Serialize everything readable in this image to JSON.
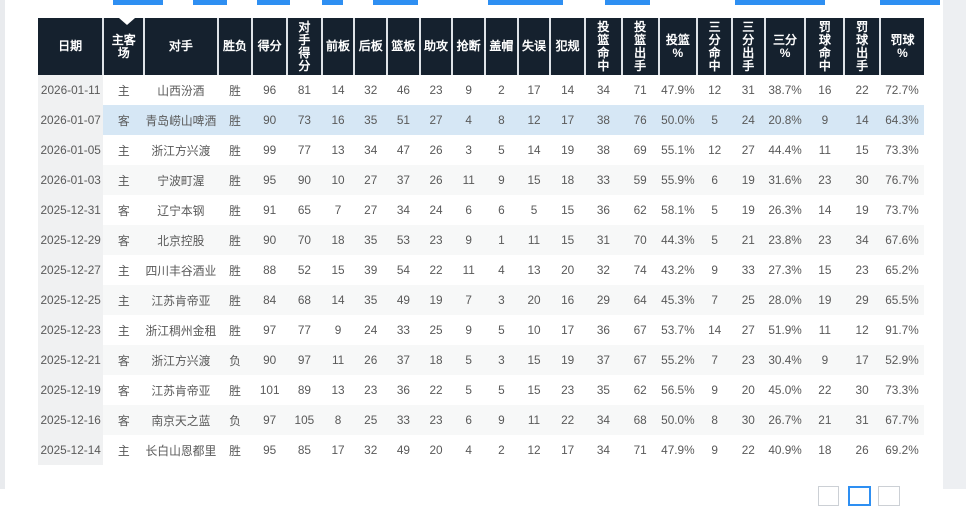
{
  "table": {
    "columns": [
      "日期",
      "主客\n场",
      "对手",
      "胜负",
      "得分",
      "对\n手\n得\n分",
      "前板",
      "后板",
      "篮板",
      "助攻",
      "抢断",
      "盖帽",
      "失误",
      "犯规",
      "投\n篮\n命\n中",
      "投\n篮\n出\n手",
      "投篮\n%",
      "三\n分\n命\n中",
      "三\n分\n出\n手",
      "三分\n%",
      "罚\n球\n命\n中",
      "罚\n球\n出\n手",
      "罚球\n%"
    ],
    "rows": [
      [
        "2026-01-11",
        "主",
        "山西汾酒",
        "胜",
        "96",
        "81",
        "14",
        "32",
        "46",
        "23",
        "9",
        "2",
        "17",
        "14",
        "34",
        "71",
        "47.9%",
        "12",
        "31",
        "38.7%",
        "16",
        "22",
        "72.7%"
      ],
      [
        "2026-01-07",
        "客",
        "青岛崂山啤酒",
        "胜",
        "90",
        "73",
        "16",
        "35",
        "51",
        "27",
        "4",
        "8",
        "12",
        "17",
        "38",
        "76",
        "50.0%",
        "5",
        "24",
        "20.8%",
        "9",
        "14",
        "64.3%"
      ],
      [
        "2026-01-05",
        "主",
        "浙江方兴渡",
        "胜",
        "99",
        "77",
        "13",
        "34",
        "47",
        "26",
        "3",
        "5",
        "14",
        "19",
        "38",
        "69",
        "55.1%",
        "12",
        "27",
        "44.4%",
        "11",
        "15",
        "73.3%"
      ],
      [
        "2026-01-03",
        "主",
        "宁波町渥",
        "胜",
        "95",
        "90",
        "10",
        "27",
        "37",
        "26",
        "11",
        "9",
        "15",
        "18",
        "33",
        "59",
        "55.9%",
        "6",
        "19",
        "31.6%",
        "23",
        "30",
        "76.7%"
      ],
      [
        "2025-12-31",
        "客",
        "辽宁本钢",
        "胜",
        "91",
        "65",
        "7",
        "27",
        "34",
        "24",
        "6",
        "6",
        "5",
        "15",
        "36",
        "62",
        "58.1%",
        "5",
        "19",
        "26.3%",
        "14",
        "19",
        "73.7%"
      ],
      [
        "2025-12-29",
        "客",
        "北京控股",
        "胜",
        "90",
        "70",
        "18",
        "35",
        "53",
        "23",
        "9",
        "1",
        "11",
        "15",
        "31",
        "70",
        "44.3%",
        "5",
        "21",
        "23.8%",
        "23",
        "34",
        "67.6%"
      ],
      [
        "2025-12-27",
        "主",
        "四川丰谷酒业",
        "胜",
        "88",
        "52",
        "15",
        "39",
        "54",
        "22",
        "11",
        "4",
        "13",
        "20",
        "32",
        "74",
        "43.2%",
        "9",
        "33",
        "27.3%",
        "15",
        "23",
        "65.2%"
      ],
      [
        "2025-12-25",
        "主",
        "江苏肯帝亚",
        "胜",
        "84",
        "68",
        "14",
        "35",
        "49",
        "19",
        "7",
        "3",
        "20",
        "16",
        "29",
        "64",
        "45.3%",
        "7",
        "25",
        "28.0%",
        "19",
        "29",
        "65.5%"
      ],
      [
        "2025-12-23",
        "主",
        "浙江稠州金租",
        "胜",
        "97",
        "77",
        "9",
        "24",
        "33",
        "25",
        "9",
        "5",
        "10",
        "17",
        "36",
        "67",
        "53.7%",
        "14",
        "27",
        "51.9%",
        "11",
        "12",
        "91.7%"
      ],
      [
        "2025-12-21",
        "客",
        "浙江方兴渡",
        "负",
        "90",
        "97",
        "11",
        "26",
        "37",
        "18",
        "5",
        "3",
        "15",
        "19",
        "37",
        "67",
        "55.2%",
        "7",
        "23",
        "30.4%",
        "9",
        "17",
        "52.9%"
      ],
      [
        "2025-12-19",
        "客",
        "江苏肯帝亚",
        "胜",
        "101",
        "89",
        "13",
        "23",
        "36",
        "22",
        "5",
        "5",
        "15",
        "23",
        "35",
        "62",
        "56.5%",
        "9",
        "20",
        "45.0%",
        "22",
        "30",
        "73.3%"
      ],
      [
        "2025-12-16",
        "客",
        "南京天之蓝",
        "负",
        "97",
        "105",
        "8",
        "25",
        "33",
        "23",
        "6",
        "9",
        "11",
        "22",
        "34",
        "68",
        "50.0%",
        "8",
        "30",
        "26.7%",
        "21",
        "31",
        "67.7%"
      ],
      [
        "2025-12-14",
        "主",
        "长白山恩都里",
        "胜",
        "95",
        "85",
        "17",
        "32",
        "49",
        "20",
        "4",
        "2",
        "12",
        "17",
        "34",
        "71",
        "47.9%",
        "9",
        "22",
        "40.9%",
        "18",
        "26",
        "69.2%"
      ]
    ],
    "highlighted_row_index": 1
  },
  "pagination": {
    "button_count": 3,
    "active_button_index": 1
  },
  "colors": {
    "header_bg": "#15212e",
    "row_stripe": "#f7f8f8",
    "row_highlight": "#d6e7f5",
    "date_column_bg": "#f0f1f2",
    "accent_blue": "#2e8ff2"
  }
}
